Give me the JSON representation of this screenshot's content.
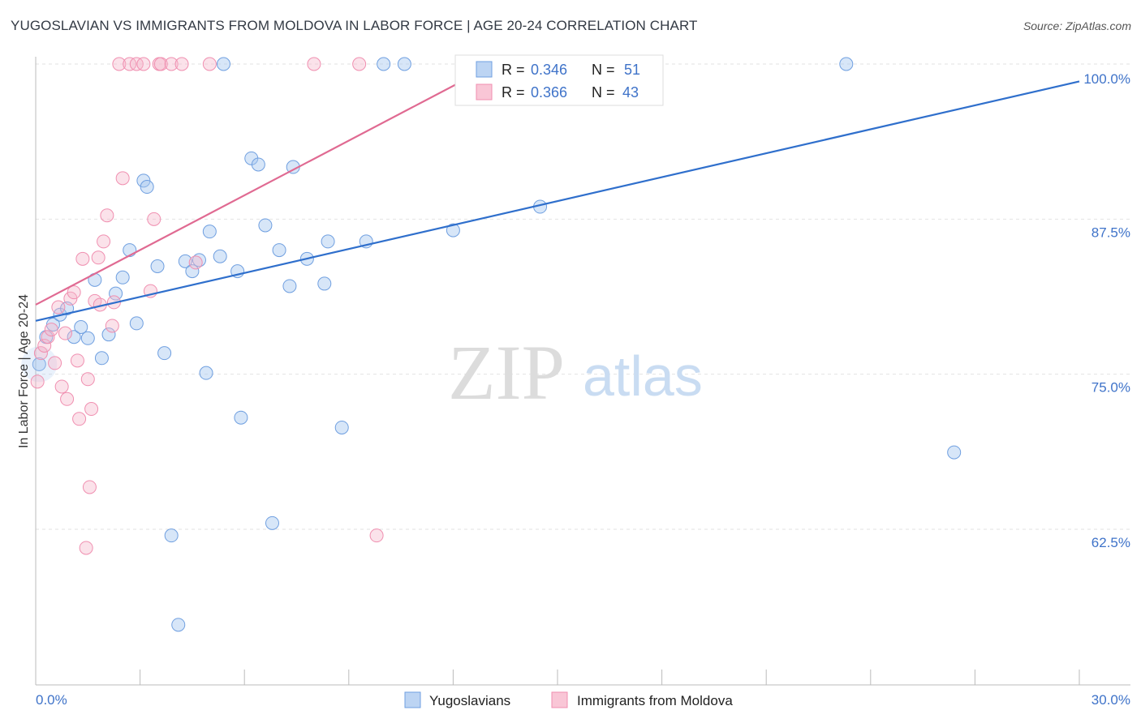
{
  "header": {
    "title": "YUGOSLAVIAN VS IMMIGRANTS FROM MOLDOVA IN LABOR FORCE | AGE 20-24 CORRELATION CHART",
    "source": "Source: ZipAtlas.com"
  },
  "watermark": {
    "zip": "ZIP",
    "atlas": "atlas"
  },
  "chart_data": {
    "type": "scatter",
    "title": "YUGOSLAVIAN VS IMMIGRANTS FROM MOLDOVA IN LABOR FORCE | AGE 20-24 CORRELATION CHART",
    "xlabel": "",
    "ylabel": "In Labor Force | Age 20-24",
    "xlim": [
      0,
      30
    ],
    "ylim": [
      50.5,
      100.5
    ],
    "x_tick_labels": [
      "0.0%",
      "30.0%"
    ],
    "y_ticks": [
      62.5,
      75.0,
      87.5,
      100.0
    ],
    "y_tick_labels": [
      "62.5%",
      "75.0%",
      "87.5%",
      "100.0%"
    ],
    "grid": "horizontal dashed",
    "legend_position": "bottom-center",
    "colors": {
      "yugoslavians": "#6f9fe0",
      "moldova": "#f08fb0",
      "blue_line": "#2f6fcc",
      "pink_line": "#e06a92"
    },
    "stats": [
      {
        "r_label": "R =",
        "r_value": "0.346",
        "n_label": "N =",
        "n_value": "51"
      },
      {
        "r_label": "R =",
        "r_value": "0.366",
        "n_label": "N =",
        "n_value": "43"
      }
    ],
    "series": [
      {
        "name": "Yugoslavians",
        "trend": {
          "x": [
            0,
            30
          ],
          "y": [
            79.3,
            98.6
          ]
        },
        "points": [
          [
            0.1,
            75.8
          ],
          [
            0.3,
            78.0
          ],
          [
            0.5,
            79.0
          ],
          [
            0.7,
            79.8
          ],
          [
            0.9,
            80.3
          ],
          [
            1.1,
            78.0
          ],
          [
            1.3,
            78.8
          ],
          [
            1.5,
            77.9
          ],
          [
            1.7,
            82.6
          ],
          [
            1.9,
            76.3
          ],
          [
            2.1,
            78.2
          ],
          [
            2.3,
            81.5
          ],
          [
            2.5,
            82.8
          ],
          [
            2.7,
            85.0
          ],
          [
            2.9,
            79.1
          ],
          [
            3.1,
            90.6
          ],
          [
            3.2,
            90.1
          ],
          [
            3.5,
            83.7
          ],
          [
            3.7,
            76.7
          ],
          [
            3.9,
            62.0
          ],
          [
            4.1,
            54.8
          ],
          [
            4.3,
            84.1
          ],
          [
            4.5,
            83.3
          ],
          [
            4.7,
            84.2
          ],
          [
            4.9,
            75.1
          ],
          [
            5.0,
            86.5
          ],
          [
            5.3,
            84.5
          ],
          [
            5.4,
            100.0
          ],
          [
            5.8,
            83.3
          ],
          [
            5.9,
            71.5
          ],
          [
            6.2,
            92.4
          ],
          [
            6.4,
            91.9
          ],
          [
            6.6,
            87.0
          ],
          [
            6.8,
            63.0
          ],
          [
            7.0,
            85.0
          ],
          [
            7.3,
            82.1
          ],
          [
            7.4,
            91.7
          ],
          [
            7.8,
            84.3
          ],
          [
            8.3,
            82.3
          ],
          [
            8.4,
            85.7
          ],
          [
            8.8,
            70.7
          ],
          [
            9.5,
            85.7
          ],
          [
            10.0,
            100.0
          ],
          [
            10.6,
            100.0
          ],
          [
            12.0,
            86.6
          ],
          [
            13.0,
            100.0
          ],
          [
            14.5,
            88.5
          ],
          [
            15.5,
            100.0
          ],
          [
            23.3,
            100.0
          ],
          [
            26.4,
            68.7
          ],
          [
            14.0,
            100.0
          ]
        ]
      },
      {
        "name": "Immigrants from Moldova",
        "trend": {
          "x": [
            0,
            13.2
          ],
          "y": [
            80.6,
            100.0
          ]
        },
        "points": [
          [
            0.05,
            74.4
          ],
          [
            0.15,
            76.7
          ],
          [
            0.25,
            77.3
          ],
          [
            0.35,
            78.0
          ],
          [
            0.45,
            78.6
          ],
          [
            0.55,
            75.9
          ],
          [
            0.65,
            80.4
          ],
          [
            0.75,
            74.0
          ],
          [
            0.85,
            78.3
          ],
          [
            0.9,
            73.0
          ],
          [
            1.0,
            81.1
          ],
          [
            1.1,
            81.6
          ],
          [
            1.2,
            76.1
          ],
          [
            1.25,
            71.4
          ],
          [
            1.35,
            84.3
          ],
          [
            1.45,
            61.0
          ],
          [
            1.5,
            74.6
          ],
          [
            1.55,
            65.9
          ],
          [
            1.6,
            72.2
          ],
          [
            1.7,
            80.9
          ],
          [
            1.8,
            84.4
          ],
          [
            1.85,
            80.6
          ],
          [
            1.95,
            85.7
          ],
          [
            2.05,
            87.8
          ],
          [
            2.2,
            78.9
          ],
          [
            2.25,
            80.8
          ],
          [
            2.4,
            100.0
          ],
          [
            2.5,
            90.8
          ],
          [
            2.7,
            100.0
          ],
          [
            2.9,
            100.0
          ],
          [
            3.1,
            100.0
          ],
          [
            3.3,
            81.7
          ],
          [
            3.4,
            87.5
          ],
          [
            3.55,
            100.0
          ],
          [
            3.6,
            100.0
          ],
          [
            3.9,
            100.0
          ],
          [
            4.2,
            100.0
          ],
          [
            4.6,
            84.0
          ],
          [
            5.0,
            100.0
          ],
          [
            8.0,
            100.0
          ],
          [
            9.3,
            100.0
          ],
          [
            9.8,
            62.0
          ],
          [
            13.0,
            100.0
          ]
        ]
      }
    ]
  }
}
